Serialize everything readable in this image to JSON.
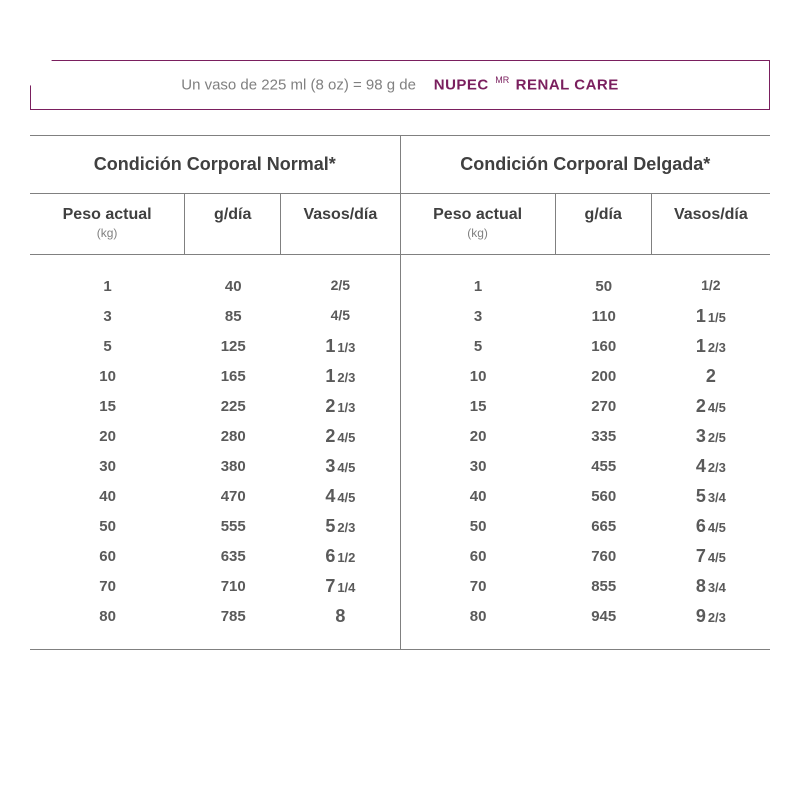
{
  "banner": {
    "lead_text": "Un vaso de 225 ml (8 oz) = 98 g de",
    "brand": "NUPEC",
    "mr": "MR",
    "product": "RENAL CARE"
  },
  "sections": [
    {
      "title": "Condición Corporal Normal*",
      "columns": {
        "peso": {
          "label": "Peso actual",
          "sub": "(kg)"
        },
        "gdia": {
          "label": "g/día"
        },
        "vasos": {
          "label": "Vasos/día"
        }
      },
      "rows": [
        {
          "peso": "1",
          "gdia": "40",
          "vasos_whole": "",
          "vasos_frac": "2/5"
        },
        {
          "peso": "3",
          "gdia": "85",
          "vasos_whole": "",
          "vasos_frac": "4/5"
        },
        {
          "peso": "5",
          "gdia": "125",
          "vasos_whole": "1",
          "vasos_frac": "1/3"
        },
        {
          "peso": "10",
          "gdia": "165",
          "vasos_whole": "1",
          "vasos_frac": "2/3"
        },
        {
          "peso": "15",
          "gdia": "225",
          "vasos_whole": "2",
          "vasos_frac": "1/3"
        },
        {
          "peso": "20",
          "gdia": "280",
          "vasos_whole": "2",
          "vasos_frac": "4/5"
        },
        {
          "peso": "30",
          "gdia": "380",
          "vasos_whole": "3",
          "vasos_frac": "4/5"
        },
        {
          "peso": "40",
          "gdia": "470",
          "vasos_whole": "4",
          "vasos_frac": "4/5"
        },
        {
          "peso": "50",
          "gdia": "555",
          "vasos_whole": "5",
          "vasos_frac": "2/3"
        },
        {
          "peso": "60",
          "gdia": "635",
          "vasos_whole": "6",
          "vasos_frac": "1/2"
        },
        {
          "peso": "70",
          "gdia": "710",
          "vasos_whole": "7",
          "vasos_frac": "1/4"
        },
        {
          "peso": "80",
          "gdia": "785",
          "vasos_whole": "8",
          "vasos_frac": ""
        }
      ]
    },
    {
      "title": "Condición Corporal Delgada*",
      "columns": {
        "peso": {
          "label": "Peso actual",
          "sub": "(kg)"
        },
        "gdia": {
          "label": "g/día"
        },
        "vasos": {
          "label": "Vasos/día"
        }
      },
      "rows": [
        {
          "peso": "1",
          "gdia": "50",
          "vasos_whole": "",
          "vasos_frac": "1/2"
        },
        {
          "peso": "3",
          "gdia": "110",
          "vasos_whole": "1",
          "vasos_frac": "1/5"
        },
        {
          "peso": "5",
          "gdia": "160",
          "vasos_whole": "1",
          "vasos_frac": "2/3"
        },
        {
          "peso": "10",
          "gdia": "200",
          "vasos_whole": "2",
          "vasos_frac": ""
        },
        {
          "peso": "15",
          "gdia": "270",
          "vasos_whole": "2",
          "vasos_frac": "4/5"
        },
        {
          "peso": "20",
          "gdia": "335",
          "vasos_whole": "3",
          "vasos_frac": "2/5"
        },
        {
          "peso": "30",
          "gdia": "455",
          "vasos_whole": "4",
          "vasos_frac": "2/3"
        },
        {
          "peso": "40",
          "gdia": "560",
          "vasos_whole": "5",
          "vasos_frac": "3/4"
        },
        {
          "peso": "50",
          "gdia": "665",
          "vasos_whole": "6",
          "vasos_frac": "4/5"
        },
        {
          "peso": "60",
          "gdia": "760",
          "vasos_whole": "7",
          "vasos_frac": "4/5"
        },
        {
          "peso": "70",
          "gdia": "855",
          "vasos_whole": "8",
          "vasos_frac": "3/4"
        },
        {
          "peso": "80",
          "gdia": "945",
          "vasos_whole": "9",
          "vasos_frac": "2/3"
        }
      ]
    }
  ],
  "colors": {
    "brand": "#7a1f5e",
    "border": "#808080",
    "text_dark": "#404040",
    "text_mid": "#5a5a5a",
    "text_light": "#808080",
    "background": "#ffffff"
  }
}
